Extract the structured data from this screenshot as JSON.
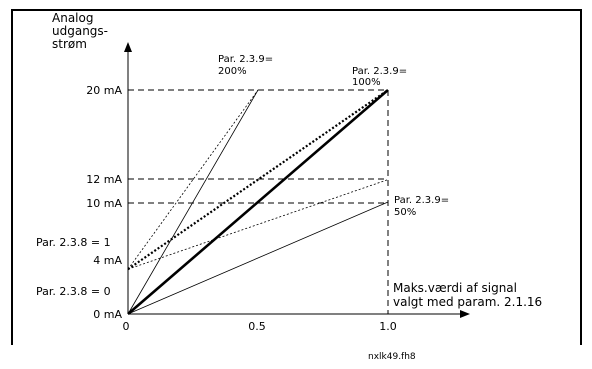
{
  "axes": {
    "y_title": [
      "Analog",
      "udgangs-",
      "strøm"
    ],
    "y_ticks": [
      "0 mA",
      "4 mA",
      "10 mA",
      "12 mA",
      "20 mA"
    ],
    "x_ticks": [
      "0",
      "0.5",
      "1.0"
    ]
  },
  "side_labels": {
    "par238_1": "Par. 2.3.8 = 1",
    "par238_0": "Par. 2.3.8 = 0"
  },
  "annotations": {
    "p200": [
      "Par. 2.3.9=",
      "200%"
    ],
    "p100": [
      "Par. 2.3.9=",
      "100%"
    ],
    "p50": [
      "Par. 2.3.9=",
      "50%"
    ],
    "maks": [
      "Maks.værdi af signal",
      "valgt med param. 2.1.16"
    ]
  },
  "footer": {
    "filename": "nxlk49.fh8"
  },
  "chart_data": {
    "type": "line",
    "x_ticks": [
      0,
      0.5,
      1.0
    ],
    "y_ticks": [
      0,
      4,
      10,
      12,
      20
    ],
    "series": [
      {
        "style": "solid-thin",
        "x": [
          0,
          0.5
        ],
        "y": [
          0,
          20
        ]
      },
      {
        "style": "solid-bold",
        "x": [
          0,
          1.0
        ],
        "y": [
          0,
          20
        ]
      },
      {
        "style": "solid-thin",
        "x": [
          0,
          1.0
        ],
        "y": [
          0,
          10
        ]
      },
      {
        "style": "dotted",
        "x": [
          0,
          0.5
        ],
        "y": [
          4,
          20
        ]
      },
      {
        "style": "dotted-bold",
        "x": [
          0,
          1.0
        ],
        "y": [
          4,
          20
        ]
      },
      {
        "style": "dotted",
        "x": [
          0,
          1.0
        ],
        "y": [
          4,
          12
        ]
      }
    ]
  }
}
